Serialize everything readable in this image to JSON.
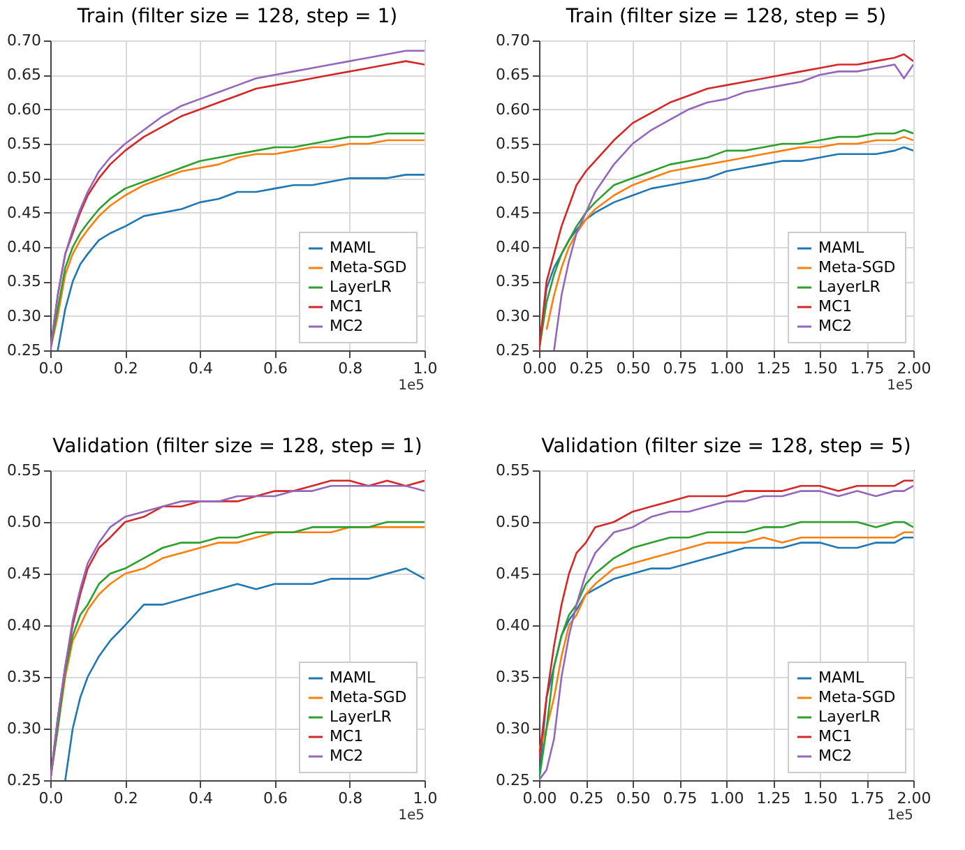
{
  "chart_data": [
    {
      "type": "line",
      "title": "Train (filter size = 128, step = 1)",
      "annotations": [
        "1e5"
      ],
      "grid": true,
      "legend": "bottom right",
      "x": [
        0,
        0.02,
        0.04,
        0.06,
        0.08,
        0.1,
        0.13,
        0.16,
        0.2,
        0.25,
        0.3,
        0.35,
        0.4,
        0.45,
        0.5,
        0.55,
        0.6,
        0.65,
        0.7,
        0.75,
        0.8,
        0.85,
        0.9,
        0.95,
        1
      ],
      "xlim": [
        0,
        1
      ],
      "xticks": [
        {
          "value": 0,
          "label": "0.0"
        },
        0.2,
        0.4,
        0.6,
        0.8,
        {
          "value": 1,
          "label": "1.0"
        }
      ],
      "ylim": [
        0.25,
        0.7
      ],
      "yticks": [
        {
          "value": 0.25,
          "label": "0.25"
        },
        {
          "value": 0.3,
          "label": "0.30"
        },
        {
          "value": 0.35,
          "label": "0.35"
        },
        {
          "value": 0.4,
          "label": "0.40"
        },
        {
          "value": 0.45,
          "label": "0.45"
        },
        {
          "value": 0.5,
          "label": "0.50"
        },
        {
          "value": 0.55,
          "label": "0.55"
        },
        {
          "value": 0.6,
          "label": "0.60"
        },
        {
          "value": 0.65,
          "label": "0.65"
        },
        {
          "value": 0.7,
          "label": "0.70"
        }
      ],
      "series": [
        {
          "name": "MAML",
          "color": "#1f77b4",
          "values": [
            null,
            0.25,
            0.31,
            0.35,
            0.375,
            0.39,
            0.41,
            0.42,
            0.43,
            0.445,
            0.45,
            0.455,
            0.465,
            0.47,
            0.48,
            0.48,
            0.485,
            0.49,
            0.49,
            0.495,
            0.5,
            0.5,
            0.5,
            0.505,
            0.505
          ]
        },
        {
          "name": "Meta-SGD",
          "color": "#ff7f0e",
          "values": [
            0.25,
            0.3,
            0.36,
            0.39,
            0.41,
            0.425,
            0.445,
            0.46,
            0.475,
            0.49,
            0.5,
            0.51,
            0.515,
            0.52,
            0.53,
            0.535,
            0.535,
            0.54,
            0.545,
            0.545,
            0.55,
            0.55,
            0.555,
            0.555,
            0.555
          ]
        },
        {
          "name": "LayerLR",
          "color": "#2ca02c",
          "values": [
            0.25,
            0.31,
            0.37,
            0.4,
            0.42,
            0.435,
            0.455,
            0.47,
            0.485,
            0.495,
            0.505,
            0.515,
            0.525,
            0.53,
            0.535,
            0.54,
            0.545,
            0.545,
            0.55,
            0.555,
            0.56,
            0.56,
            0.565,
            0.565,
            0.565
          ]
        },
        {
          "name": "MC1",
          "color": "#d62728",
          "values": [
            0.25,
            0.33,
            0.39,
            0.42,
            0.45,
            0.475,
            0.5,
            0.52,
            0.54,
            0.56,
            0.575,
            0.59,
            0.6,
            0.61,
            0.62,
            0.63,
            0.635,
            0.64,
            0.645,
            0.65,
            0.655,
            0.66,
            0.665,
            0.67,
            0.665
          ]
        },
        {
          "name": "MC2",
          "color": "#9467bd",
          "values": [
            0.25,
            0.33,
            0.39,
            0.425,
            0.455,
            0.48,
            0.51,
            0.53,
            0.55,
            0.57,
            0.59,
            0.605,
            0.615,
            0.625,
            0.635,
            0.645,
            0.65,
            0.655,
            0.66,
            0.665,
            0.67,
            0.675,
            0.68,
            0.685,
            0.685
          ]
        }
      ]
    },
    {
      "type": "line",
      "title": "Train (filter size = 128, step = 5)",
      "annotations": [
        "1e5"
      ],
      "grid": true,
      "legend": "bottom right",
      "x": [
        0,
        0.04,
        0.08,
        0.12,
        0.16,
        0.2,
        0.25,
        0.3,
        0.4,
        0.5,
        0.6,
        0.7,
        0.8,
        0.9,
        1,
        1.1,
        1.2,
        1.3,
        1.4,
        1.5,
        1.6,
        1.7,
        1.8,
        1.9,
        1.95,
        2
      ],
      "xlim": [
        0,
        2
      ],
      "xticks": [
        {
          "value": 0,
          "label": "0.00"
        },
        0.25,
        {
          "value": 0.5,
          "label": "0.50"
        },
        0.75,
        {
          "value": 1,
          "label": "1.00"
        },
        1.25,
        {
          "value": 1.5,
          "label": "1.50"
        },
        1.75,
        {
          "value": 2,
          "label": "2.00"
        }
      ],
      "ylim": [
        0.25,
        0.7
      ],
      "yticks": [
        {
          "value": 0.25,
          "label": "0.25"
        },
        {
          "value": 0.3,
          "label": "0.30"
        },
        {
          "value": 0.35,
          "label": "0.35"
        },
        {
          "value": 0.4,
          "label": "0.40"
        },
        {
          "value": 0.45,
          "label": "0.45"
        },
        {
          "value": 0.5,
          "label": "0.50"
        },
        {
          "value": 0.55,
          "label": "0.55"
        },
        {
          "value": 0.6,
          "label": "0.60"
        },
        {
          "value": 0.65,
          "label": "0.65"
        },
        {
          "value": 0.7,
          "label": "0.70"
        }
      ],
      "series": [
        {
          "name": "MAML",
          "color": "#1f77b4",
          "values": [
            0.25,
            0.34,
            0.37,
            0.39,
            0.41,
            0.425,
            0.44,
            0.45,
            0.465,
            0.475,
            0.485,
            0.49,
            0.495,
            0.5,
            0.51,
            0.515,
            0.52,
            0.525,
            0.525,
            0.53,
            0.535,
            0.535,
            0.535,
            0.54,
            0.545,
            0.54
          ]
        },
        {
          "name": "Meta-SGD",
          "color": "#ff7f0e",
          "values": [
            null,
            0.28,
            0.33,
            0.37,
            0.4,
            0.42,
            0.44,
            0.455,
            0.475,
            0.49,
            0.5,
            0.51,
            0.515,
            0.52,
            0.525,
            0.53,
            0.535,
            0.54,
            0.545,
            0.545,
            0.55,
            0.55,
            0.555,
            0.555,
            0.56,
            0.555
          ]
        },
        {
          "name": "LayerLR",
          "color": "#2ca02c",
          "values": [
            0.25,
            0.32,
            0.36,
            0.39,
            0.41,
            0.43,
            0.45,
            0.465,
            0.49,
            0.5,
            0.51,
            0.52,
            0.525,
            0.53,
            0.54,
            0.54,
            0.545,
            0.55,
            0.55,
            0.555,
            0.56,
            0.56,
            0.565,
            0.565,
            0.57,
            0.565
          ]
        },
        {
          "name": "MC1",
          "color": "#d62728",
          "values": [
            0.25,
            0.35,
            0.39,
            0.43,
            0.46,
            0.49,
            0.51,
            0.525,
            0.555,
            0.58,
            0.595,
            0.61,
            0.62,
            0.63,
            0.635,
            0.64,
            0.645,
            0.65,
            0.655,
            0.66,
            0.665,
            0.665,
            0.67,
            0.675,
            0.68,
            0.67
          ]
        },
        {
          "name": "MC2",
          "color": "#9467bd",
          "values": [
            null,
            null,
            0.25,
            0.33,
            0.38,
            0.42,
            0.45,
            0.48,
            0.52,
            0.55,
            0.57,
            0.585,
            0.6,
            0.61,
            0.615,
            0.625,
            0.63,
            0.635,
            0.64,
            0.65,
            0.655,
            0.655,
            0.66,
            0.665,
            0.645,
            0.665
          ]
        }
      ]
    },
    {
      "type": "line",
      "title": "Validation (filter size = 128, step = 1)",
      "annotations": [
        "1e5"
      ],
      "grid": true,
      "legend": "bottom right",
      "x": [
        0,
        0.02,
        0.04,
        0.06,
        0.08,
        0.1,
        0.13,
        0.16,
        0.2,
        0.25,
        0.3,
        0.35,
        0.4,
        0.45,
        0.5,
        0.55,
        0.6,
        0.65,
        0.7,
        0.75,
        0.8,
        0.85,
        0.9,
        0.95,
        1
      ],
      "xlim": [
        0,
        1
      ],
      "xticks": [
        {
          "value": 0,
          "label": "0.0"
        },
        0.2,
        0.4,
        0.6,
        0.8,
        {
          "value": 1,
          "label": "1.0"
        }
      ],
      "ylim": [
        0.25,
        0.55
      ],
      "yticks": [
        {
          "value": 0.25,
          "label": "0.25"
        },
        {
          "value": 0.3,
          "label": "0.30"
        },
        {
          "value": 0.35,
          "label": "0.35"
        },
        {
          "value": 0.4,
          "label": "0.40"
        },
        {
          "value": 0.45,
          "label": "0.45"
        },
        {
          "value": 0.5,
          "label": "0.50"
        },
        {
          "value": 0.55,
          "label": "0.55"
        }
      ],
      "series": [
        {
          "name": "MAML",
          "color": "#1f77b4",
          "values": [
            null,
            null,
            0.25,
            0.3,
            0.33,
            0.35,
            0.37,
            0.385,
            0.4,
            0.42,
            0.42,
            0.425,
            0.43,
            0.435,
            0.44,
            0.435,
            0.44,
            0.44,
            0.44,
            0.445,
            0.445,
            0.445,
            0.45,
            0.455,
            0.445
          ]
        },
        {
          "name": "Meta-SGD",
          "color": "#ff7f0e",
          "values": [
            0.25,
            0.3,
            0.35,
            0.385,
            0.4,
            0.415,
            0.43,
            0.44,
            0.45,
            0.455,
            0.465,
            0.47,
            0.475,
            0.48,
            0.48,
            0.485,
            0.49,
            0.49,
            0.49,
            0.49,
            0.495,
            0.495,
            0.495,
            0.495,
            0.495
          ]
        },
        {
          "name": "LayerLR",
          "color": "#2ca02c",
          "values": [
            0.25,
            0.3,
            0.355,
            0.39,
            0.41,
            0.42,
            0.44,
            0.45,
            0.455,
            0.465,
            0.475,
            0.48,
            0.48,
            0.485,
            0.485,
            0.49,
            0.49,
            0.49,
            0.495,
            0.495,
            0.495,
            0.495,
            0.5,
            0.5,
            0.5
          ]
        },
        {
          "name": "MC1",
          "color": "#d62728",
          "values": [
            0.25,
            0.31,
            0.36,
            0.4,
            0.43,
            0.455,
            0.475,
            0.485,
            0.5,
            0.505,
            0.515,
            0.515,
            0.52,
            0.52,
            0.52,
            0.525,
            0.53,
            0.53,
            0.535,
            0.54,
            0.54,
            0.535,
            0.54,
            0.535,
            0.54
          ]
        },
        {
          "name": "MC2",
          "color": "#9467bd",
          "values": [
            0.25,
            0.31,
            0.36,
            0.405,
            0.435,
            0.46,
            0.48,
            0.495,
            0.505,
            0.51,
            0.515,
            0.52,
            0.52,
            0.52,
            0.525,
            0.525,
            0.525,
            0.53,
            0.53,
            0.535,
            0.535,
            0.535,
            0.535,
            0.535,
            0.53
          ]
        }
      ]
    },
    {
      "type": "line",
      "title": "Validation (filter size = 128, step = 5)",
      "annotations": [
        "1e5"
      ],
      "grid": true,
      "legend": "bottom right",
      "x": [
        0,
        0.04,
        0.08,
        0.12,
        0.16,
        0.2,
        0.25,
        0.3,
        0.4,
        0.5,
        0.6,
        0.7,
        0.8,
        0.9,
        1,
        1.1,
        1.2,
        1.3,
        1.4,
        1.5,
        1.6,
        1.7,
        1.8,
        1.9,
        1.95,
        2
      ],
      "xlim": [
        0,
        2
      ],
      "xticks": [
        {
          "value": 0,
          "label": "0.00"
        },
        0.25,
        {
          "value": 0.5,
          "label": "0.50"
        },
        0.75,
        {
          "value": 1,
          "label": "1.00"
        },
        1.25,
        {
          "value": 1.5,
          "label": "1.50"
        },
        1.75,
        {
          "value": 2,
          "label": "2.00"
        }
      ],
      "ylim": [
        0.25,
        0.55
      ],
      "yticks": [
        {
          "value": 0.25,
          "label": "0.25"
        },
        {
          "value": 0.3,
          "label": "0.30"
        },
        {
          "value": 0.35,
          "label": "0.35"
        },
        {
          "value": 0.4,
          "label": "0.40"
        },
        {
          "value": 0.45,
          "label": "0.45"
        },
        {
          "value": 0.5,
          "label": "0.50"
        },
        {
          "value": 0.55,
          "label": "0.55"
        }
      ],
      "series": [
        {
          "name": "MAML",
          "color": "#1f77b4",
          "values": [
            0.25,
            0.33,
            0.36,
            0.39,
            0.405,
            0.415,
            0.43,
            0.435,
            0.445,
            0.45,
            0.455,
            0.455,
            0.46,
            0.465,
            0.47,
            0.475,
            0.475,
            0.475,
            0.48,
            0.48,
            0.475,
            0.475,
            0.48,
            0.48,
            0.485,
            0.485
          ]
        },
        {
          "name": "Meta-SGD",
          "color": "#ff7f0e",
          "values": [
            0.28,
            0.3,
            0.33,
            0.37,
            0.4,
            0.41,
            0.43,
            0.44,
            0.455,
            0.46,
            0.465,
            0.47,
            0.475,
            0.48,
            0.48,
            0.48,
            0.485,
            0.48,
            0.485,
            0.485,
            0.485,
            0.485,
            0.485,
            0.485,
            0.49,
            0.49
          ]
        },
        {
          "name": "LayerLR",
          "color": "#2ca02c",
          "values": [
            0.25,
            0.3,
            0.36,
            0.39,
            0.41,
            0.42,
            0.44,
            0.45,
            0.465,
            0.475,
            0.48,
            0.485,
            0.485,
            0.49,
            0.49,
            0.49,
            0.495,
            0.495,
            0.5,
            0.5,
            0.5,
            0.5,
            0.495,
            0.5,
            0.5,
            0.495
          ]
        },
        {
          "name": "MC1",
          "color": "#d62728",
          "values": [
            0.27,
            0.33,
            0.38,
            0.42,
            0.45,
            0.47,
            0.48,
            0.495,
            0.5,
            0.51,
            0.515,
            0.52,
            0.525,
            0.525,
            0.525,
            0.53,
            0.53,
            0.53,
            0.535,
            0.535,
            0.53,
            0.535,
            0.535,
            0.535,
            0.54,
            0.54
          ]
        },
        {
          "name": "MC2",
          "color": "#9467bd",
          "values": [
            0.25,
            0.26,
            0.29,
            0.35,
            0.39,
            0.42,
            0.45,
            0.47,
            0.49,
            0.495,
            0.505,
            0.51,
            0.51,
            0.515,
            0.52,
            0.52,
            0.525,
            0.525,
            0.53,
            0.53,
            0.525,
            0.53,
            0.525,
            0.53,
            0.53,
            0.535
          ]
        }
      ]
    }
  ]
}
